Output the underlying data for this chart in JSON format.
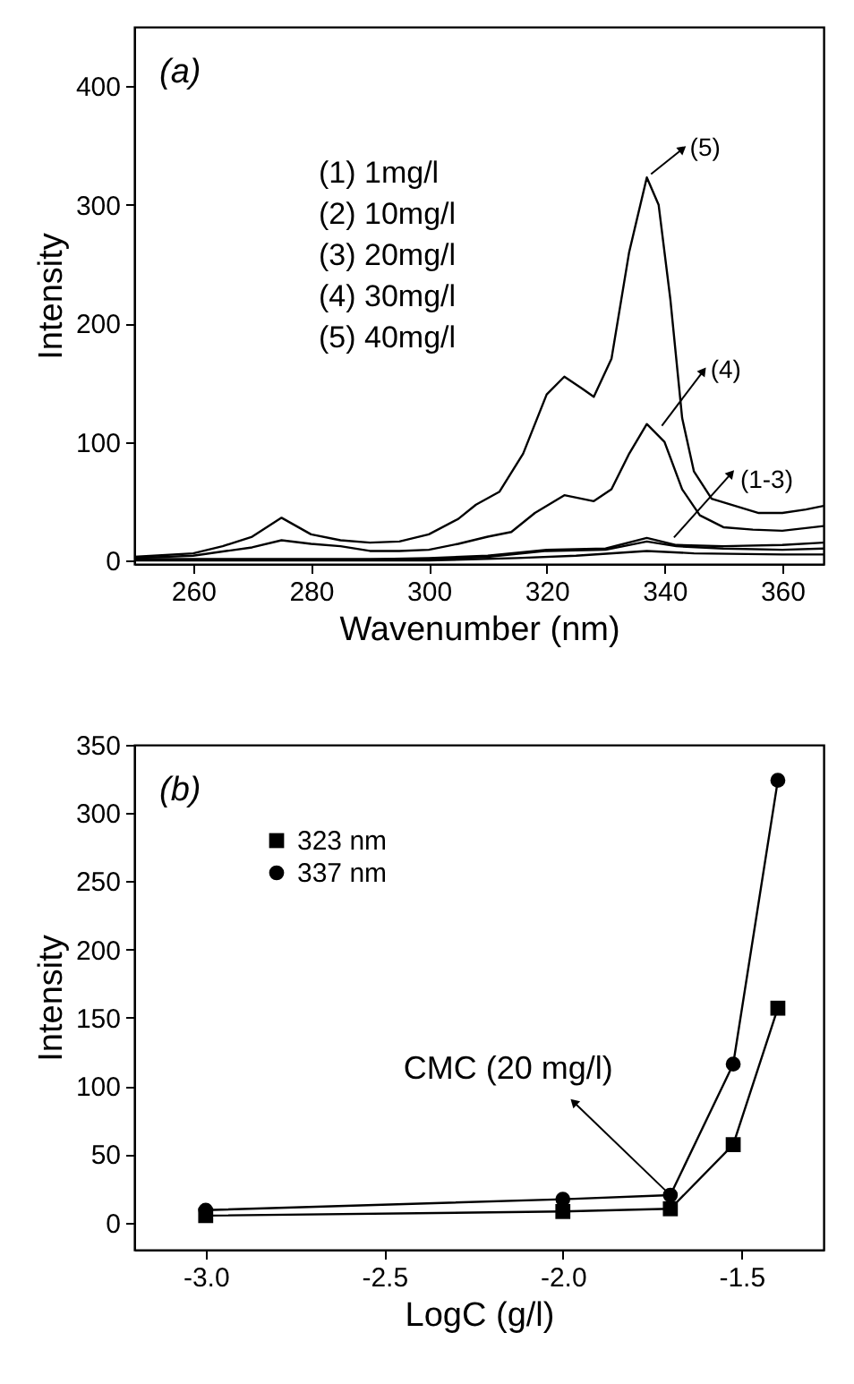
{
  "chart_data": [
    {
      "type": "line",
      "title": "(a)",
      "xlabel": "Wavenumber (nm)",
      "ylabel": "Intensity",
      "xlim": [
        250,
        367
      ],
      "ylim": [
        -3,
        450
      ],
      "xticks": [
        260,
        280,
        300,
        320,
        340,
        360
      ],
      "yticks": [
        0,
        100,
        200,
        300,
        400
      ],
      "grid": false,
      "series": [
        {
          "color": "#000000",
          "x": [
            250,
            270,
            290,
            300,
            315,
            325,
            337,
            345,
            360,
            367
          ],
          "values": [
            0,
            0,
            0,
            0,
            2,
            4,
            8,
            6,
            5,
            5
          ]
        },
        {
          "color": "#000000",
          "x": [
            250,
            290,
            300,
            310,
            320,
            330,
            337,
            342,
            350,
            360,
            367
          ],
          "values": [
            1,
            1,
            1,
            3,
            8,
            9,
            16,
            12,
            10,
            9,
            10
          ]
        },
        {
          "color": "#000000",
          "x": [
            250,
            270,
            290,
            300,
            310,
            320,
            330,
            337,
            342,
            350,
            360,
            367
          ],
          "values": [
            1,
            1,
            1,
            2,
            4,
            9,
            10,
            19,
            13,
            12,
            13,
            15
          ]
        },
        {
          "color": "#000000",
          "x": [
            250,
            260,
            270,
            275,
            280,
            285,
            290,
            295,
            300,
            305,
            310,
            314,
            318,
            323,
            328,
            331,
            334,
            337,
            340,
            343,
            346,
            350,
            355,
            360,
            367
          ],
          "values": [
            2,
            4,
            11,
            17,
            14,
            12,
            8,
            8,
            9,
            14,
            20,
            24,
            40,
            55,
            50,
            60,
            90,
            115,
            100,
            60,
            38,
            28,
            26,
            25,
            29
          ]
        },
        {
          "color": "#000000",
          "x": [
            250,
            260,
            265,
            270,
            275,
            280,
            285,
            290,
            295,
            300,
            305,
            308,
            312,
            316,
            320,
            323,
            326,
            328,
            331,
            334,
            337,
            339,
            341,
            343,
            345,
            348,
            352,
            356,
            360,
            364,
            367
          ],
          "values": [
            3,
            6,
            12,
            20,
            36,
            22,
            17,
            15,
            16,
            22,
            35,
            47,
            58,
            90,
            140,
            155,
            145,
            138,
            170,
            260,
            323,
            300,
            220,
            120,
            75,
            52,
            46,
            40,
            40,
            43,
            46
          ]
        }
      ],
      "annotations": [
        "(1) 1mg/l",
        "(2) 10mg/l",
        "(3) 20mg/l",
        "(4) 30mg/l",
        "(5) 40mg/l",
        {
          "text": "(5)",
          "x": 337,
          "y": 323
        },
        {
          "text": "(4)",
          "x": 339,
          "y": 110
        },
        {
          "text": "(1-3)",
          "x": 341,
          "y": 16
        }
      ]
    },
    {
      "type": "line",
      "title": "(b)",
      "xlabel": "LogC (g/l)",
      "ylabel": "Intensity",
      "xlim": [
        -3.2,
        -1.27
      ],
      "ylim": [
        -20,
        350
      ],
      "xticks": [
        {
          "value": -3,
          "label": "-3.0"
        },
        {
          "value": -2.5,
          "label": "-2.5"
        },
        {
          "value": -2,
          "label": "-2.0"
        },
        {
          "value": -1.5,
          "label": "-1.5"
        }
      ],
      "yticks": [
        0,
        50,
        100,
        150,
        200,
        250,
        300,
        350
      ],
      "grid": false,
      "legend": "top left",
      "x": [
        -3.0,
        -2.0,
        -1.699,
        -1.523,
        -1.398
      ],
      "series": [
        {
          "name": "323 nm",
          "color": "#000000",
          "marker": "square",
          "values": [
            5,
            8,
            10,
            57,
            157
          ]
        },
        {
          "name": "337 nm",
          "color": "#000000",
          "marker": "circle",
          "values": [
            9,
            17,
            20,
            116,
            324
          ]
        }
      ],
      "annotations": [
        {
          "text": "CMC (20 mg/l)",
          "x": -1.699,
          "y": 20
        }
      ]
    }
  ]
}
